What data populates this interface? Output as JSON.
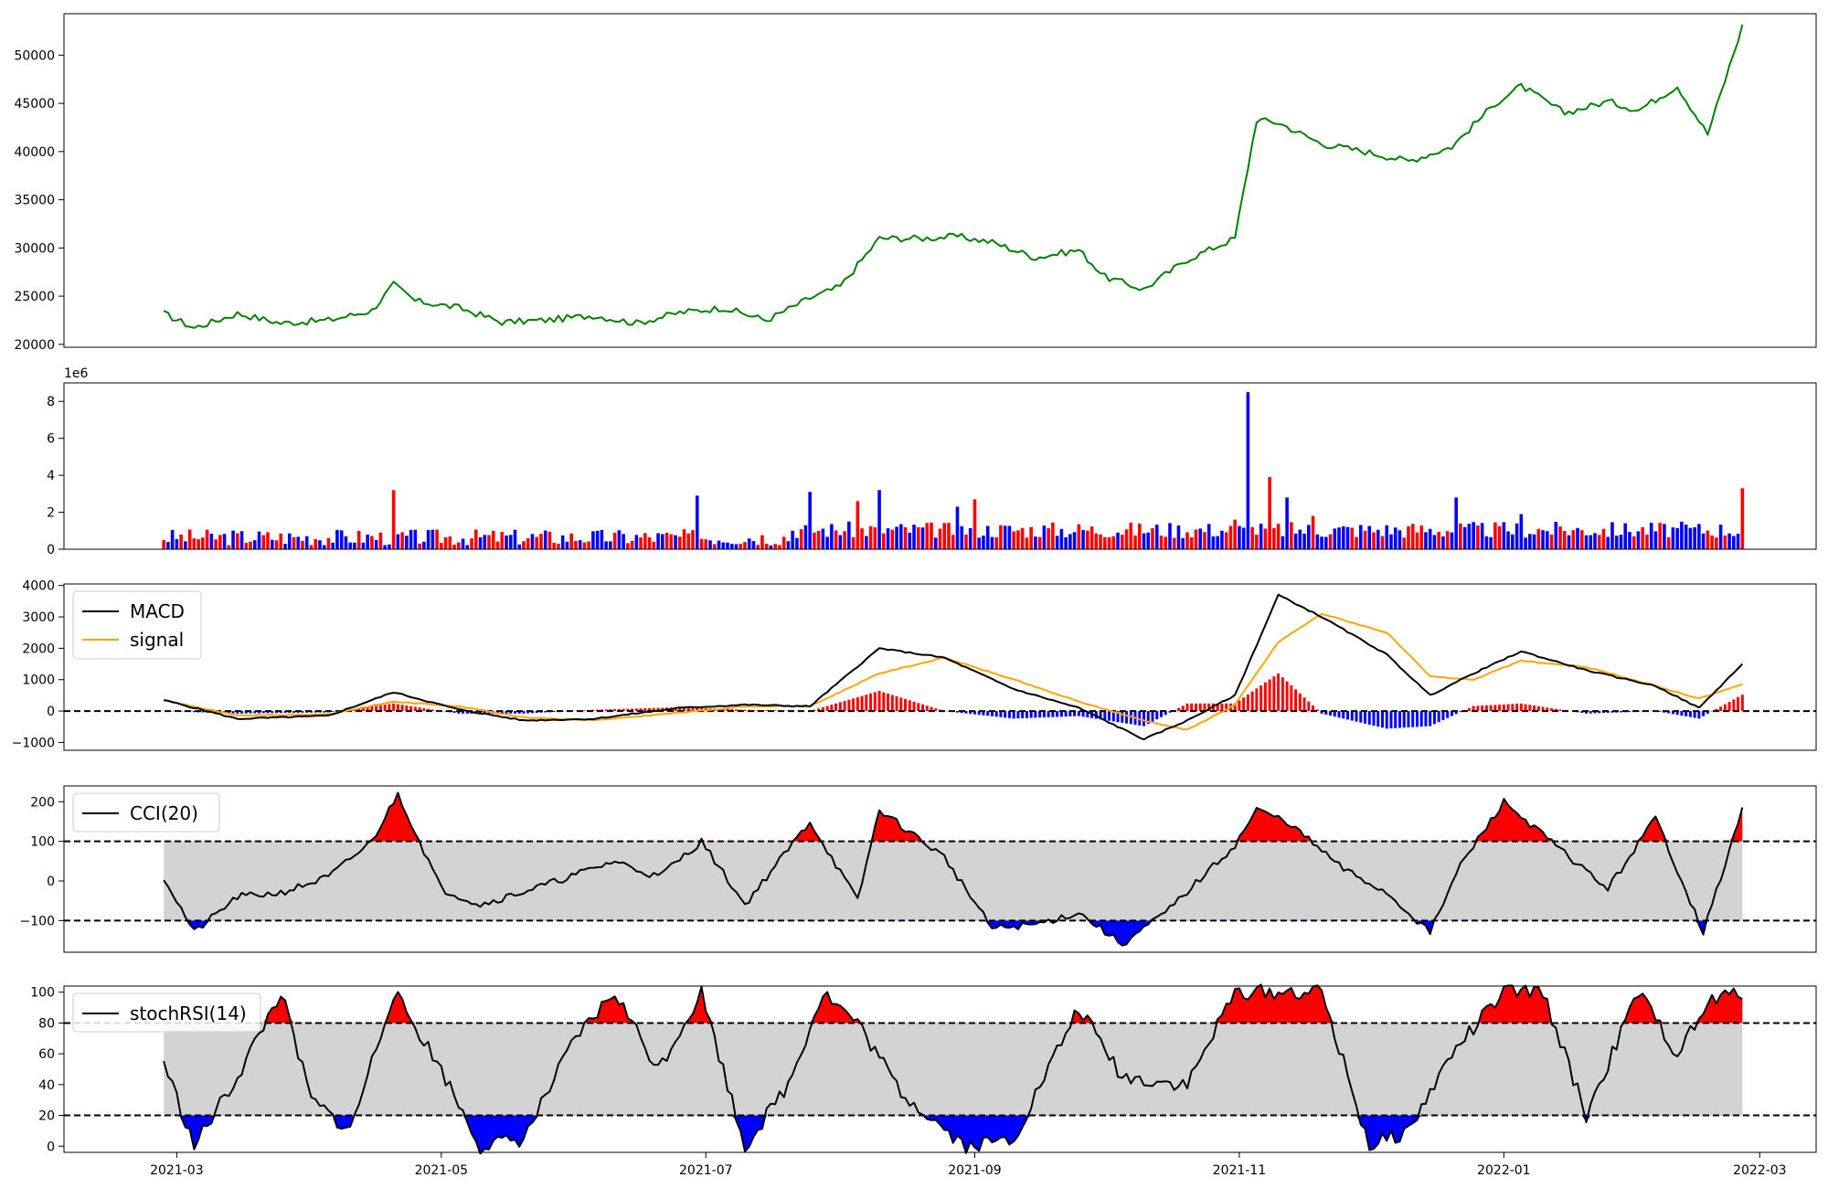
{
  "chart_data": [
    {
      "type": "line",
      "panel": "price",
      "ylim": [
        19700,
        54300
      ],
      "yticks": [
        20000,
        25000,
        30000,
        35000,
        40000,
        45000,
        50000
      ],
      "colors": {
        "line": "#008000"
      },
      "x": [
        "2021-02-26",
        "2021-03-05",
        "2021-03-15",
        "2021-03-25",
        "2021-04-05",
        "2021-04-15",
        "2021-04-20",
        "2021-04-25",
        "2021-05-05",
        "2021-05-15",
        "2021-05-25",
        "2021-06-05",
        "2021-06-15",
        "2021-06-25",
        "2021-07-05",
        "2021-07-15",
        "2021-07-25",
        "2021-08-01",
        "2021-08-10",
        "2021-08-20",
        "2021-08-28",
        "2021-09-05",
        "2021-09-15",
        "2021-09-25",
        "2021-10-01",
        "2021-10-10",
        "2021-10-20",
        "2021-10-31",
        "2021-11-05",
        "2021-11-10",
        "2021-11-20",
        "2021-11-30",
        "2021-12-10",
        "2021-12-20",
        "2021-12-30",
        "2022-01-05",
        "2022-01-15",
        "2022-01-25",
        "2022-02-01",
        "2022-02-10",
        "2022-02-17",
        "2022-02-25"
      ],
      "values": [
        23200,
        21700,
        23200,
        22200,
        22500,
        23500,
        26200,
        24500,
        23800,
        22300,
        22500,
        23000,
        22200,
        23300,
        23800,
        22500,
        24800,
        26000,
        31000,
        31000,
        31200,
        30600,
        29000,
        29800,
        27000,
        25700,
        28800,
        31000,
        43300,
        43000,
        40800,
        40000,
        39000,
        40500,
        45000,
        46800,
        44000,
        45200,
        44300,
        46800,
        41800,
        53000
      ]
    },
    {
      "type": "bar",
      "panel": "volume",
      "ylim": [
        0,
        9000000
      ],
      "yticks": [
        0,
        2,
        4,
        6,
        8
      ],
      "offset_label": "1e6",
      "colors": {
        "up": "#ff0000",
        "down": "#0000ff"
      },
      "x": [
        "2021-04-20",
        "2021-06-29",
        "2021-07-25",
        "2021-08-05",
        "2021-08-10",
        "2021-08-28",
        "2021-09-01",
        "2021-10-31",
        "2021-11-03",
        "2021-11-08",
        "2021-11-12",
        "2021-11-18",
        "2021-12-21",
        "2022-01-05",
        "2022-02-25"
      ],
      "values": [
        3200000,
        2900000,
        3100000,
        2600000,
        3200000,
        2300000,
        2700000,
        1600000,
        8500000,
        3900000,
        2800000,
        1800000,
        2800000,
        1900000,
        3300000
      ]
    },
    {
      "type": "line",
      "panel": "macd",
      "ylim": [
        -1250,
        4050
      ],
      "yticks": [
        -1000,
        0,
        1000,
        2000,
        3000,
        4000
      ],
      "reference_lines": [
        0
      ],
      "legend": "upper-left",
      "colors": {
        "macd": "#000000",
        "signal": "#ffa500",
        "hist_up": "#ff0000",
        "hist_down": "#0000ff"
      },
      "x": [
        "2021-02-26",
        "2021-03-15",
        "2021-04-05",
        "2021-04-20",
        "2021-05-05",
        "2021-05-20",
        "2021-06-05",
        "2021-06-25",
        "2021-07-10",
        "2021-07-25",
        "2021-08-10",
        "2021-08-25",
        "2021-09-10",
        "2021-09-25",
        "2021-10-10",
        "2021-10-20",
        "2021-10-31",
        "2021-11-10",
        "2021-11-20",
        "2021-12-05",
        "2021-12-15",
        "2021-12-25",
        "2022-01-05",
        "2022-01-20",
        "2022-02-05",
        "2022-02-15",
        "2022-02-25"
      ],
      "series": [
        {
          "name": "MACD",
          "values": [
            350,
            -250,
            -150,
            600,
            50,
            -300,
            -250,
            100,
            200,
            150,
            2000,
            1700,
            700,
            100,
            -900,
            -300,
            500,
            3700,
            3000,
            1800,
            500,
            1200,
            1900,
            1300,
            800,
            100,
            1500
          ]
        },
        {
          "name": "signal",
          "values": [
            350,
            -150,
            -100,
            300,
            150,
            -200,
            -300,
            -50,
            150,
            150,
            1200,
            1700,
            1000,
            300,
            -300,
            -600,
            200,
            2200,
            3100,
            2500,
            1100,
            1000,
            1600,
            1400,
            800,
            400,
            850
          ]
        }
      ]
    },
    {
      "type": "line",
      "panel": "cci",
      "ylim": [
        -180,
        240
      ],
      "yticks": [
        -100,
        0,
        100,
        200
      ],
      "reference_lines": [
        -100,
        100
      ],
      "legend": "upper-left",
      "colors": {
        "line": "#000000",
        "above": "#ff0000",
        "below": "#0000ff",
        "band": "#d3d3d3"
      },
      "x": [
        "2021-02-26",
        "2021-03-05",
        "2021-03-15",
        "2021-03-25",
        "2021-04-05",
        "2021-04-15",
        "2021-04-21",
        "2021-05-01",
        "2021-05-10",
        "2021-05-25",
        "2021-06-10",
        "2021-06-20",
        "2021-06-30",
        "2021-07-10",
        "2021-07-25",
        "2021-08-05",
        "2021-08-10",
        "2021-08-25",
        "2021-09-05",
        "2021-09-15",
        "2021-09-25",
        "2021-10-05",
        "2021-10-15",
        "2021-10-31",
        "2021-11-05",
        "2021-11-12",
        "2021-11-25",
        "2021-12-05",
        "2021-12-15",
        "2021-12-22",
        "2022-01-01",
        "2022-01-15",
        "2022-01-25",
        "2022-02-05",
        "2022-02-16",
        "2022-02-25"
      ],
      "series": [
        {
          "name": "CCI(20)",
          "values": [
            10,
            -130,
            -40,
            -30,
            10,
            100,
            220,
            -20,
            -60,
            -10,
            50,
            10,
            100,
            -60,
            150,
            -50,
            180,
            60,
            -120,
            -110,
            -80,
            -160,
            -80,
            90,
            180,
            150,
            30,
            -30,
            -130,
            40,
            200,
            70,
            -20,
            160,
            -130,
            180
          ]
        }
      ]
    },
    {
      "type": "line",
      "panel": "stochrsi",
      "ylim": [
        -4,
        104
      ],
      "yticks": [
        0,
        20,
        40,
        60,
        80,
        100
      ],
      "reference_lines": [
        20,
        80
      ],
      "legend": "upper-left",
      "colors": {
        "line": "#000000",
        "above": "#ff0000",
        "below": "#0000ff",
        "band": "#d3d3d3"
      },
      "x": [
        "2021-02-26",
        "2021-03-05",
        "2021-03-15",
        "2021-03-25",
        "2021-04-01",
        "2021-04-10",
        "2021-04-20",
        "2021-04-30",
        "2021-05-10",
        "2021-05-20",
        "2021-06-01",
        "2021-06-10",
        "2021-06-20",
        "2021-06-30",
        "2021-07-10",
        "2021-07-20",
        "2021-07-28",
        "2021-08-05",
        "2021-08-15",
        "2021-08-30",
        "2021-09-10",
        "2021-09-25",
        "2021-10-05",
        "2021-10-20",
        "2021-10-31",
        "2021-11-05",
        "2021-11-20",
        "2021-12-01",
        "2021-12-10",
        "2021-12-20",
        "2022-01-01",
        "2022-01-10",
        "2022-01-20",
        "2022-02-01",
        "2022-02-10",
        "2022-02-18",
        "2022-02-25"
      ],
      "series": [
        {
          "name": "stochRSI(14)",
          "values": [
            55,
            0,
            45,
            100,
            30,
            10,
            100,
            55,
            0,
            5,
            70,
            100,
            50,
            100,
            0,
            40,
            100,
            80,
            35,
            0,
            5,
            90,
            45,
            40,
            100,
            100,
            100,
            0,
            10,
            60,
            100,
            100,
            20,
            100,
            60,
            95,
            100
          ]
        }
      ]
    }
  ],
  "xaxis": {
    "range": [
      "2021-02-03",
      "2022-03-14"
    ],
    "ticks": [
      {
        "date": "2021-03-01",
        "label": "2021-03"
      },
      {
        "date": "2021-05-01",
        "label": "2021-05"
      },
      {
        "date": "2021-07-01",
        "label": "2021-07"
      },
      {
        "date": "2021-09-01",
        "label": "2021-09"
      },
      {
        "date": "2021-11-01",
        "label": "2021-11"
      },
      {
        "date": "2022-01-01",
        "label": "2022-01"
      },
      {
        "date": "2022-03-01",
        "label": "2022-03"
      }
    ]
  }
}
